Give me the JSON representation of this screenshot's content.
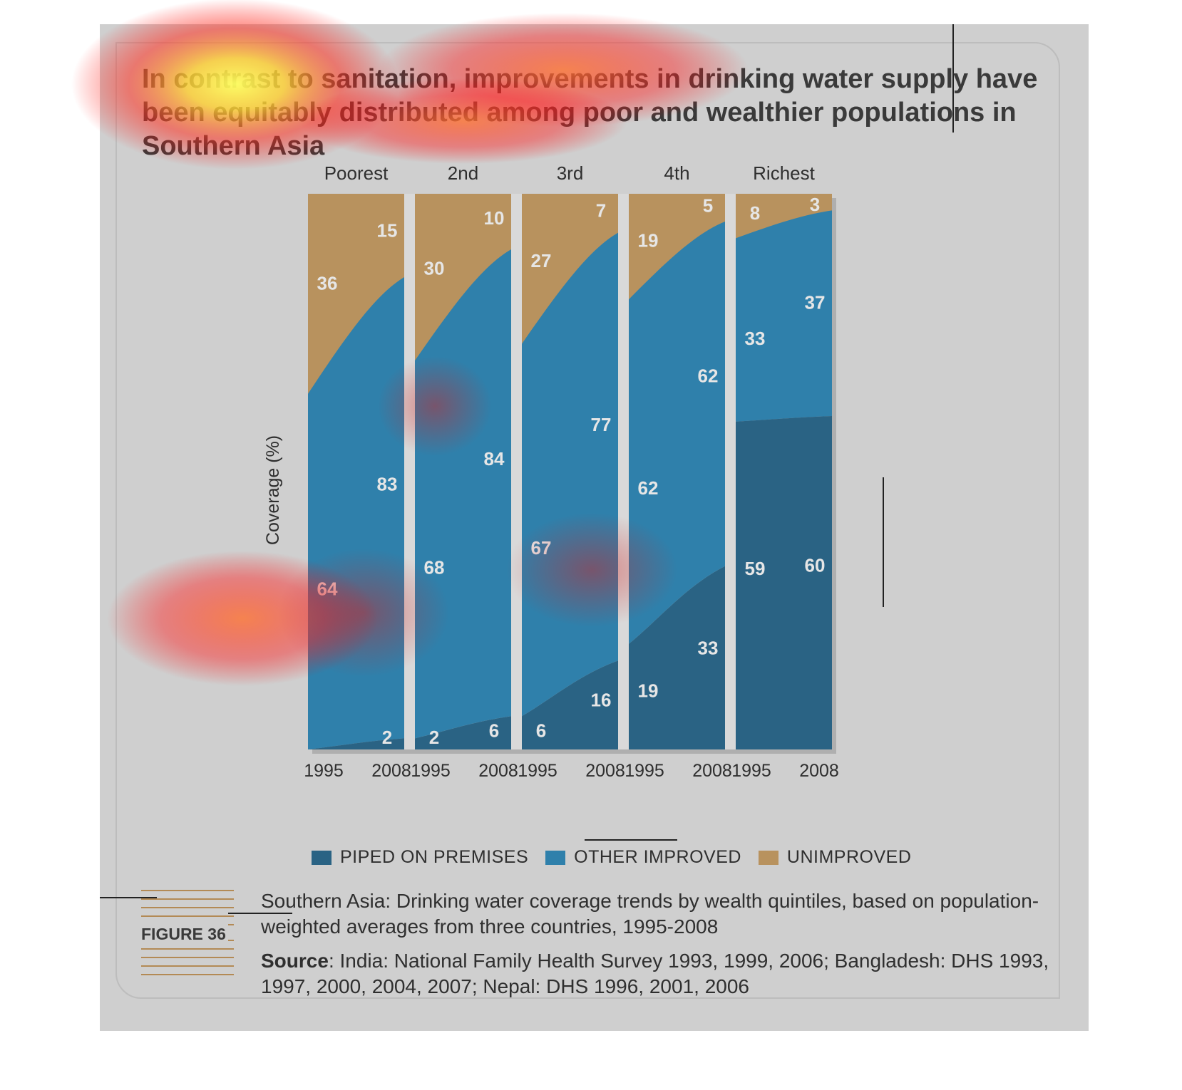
{
  "headline": "In contrast to sanitation, improvements in drinking water supply have been equitably distributed among poor and wealthier populations in Southern Asia",
  "figure_label": "FIGURE 36",
  "caption": "Southern Asia: Drinking water coverage trends by wealth quintiles, based on population-weighted averages from three countries, 1995-2008",
  "source_label": "Source",
  "source_text": ": India: National Family Health Survey 1993, 1999, 2006; Bangladesh: DHS 1993, 1997, 2000, 2004, 2007; Nepal: DHS 1996, 2001, 2006",
  "colors": {
    "piped": "#2a6384",
    "other": "#2f80ab",
    "unimproved": "#b8925e",
    "divider": "#d9d9d9"
  },
  "chart_data": {
    "type": "area",
    "ylabel": "Coverage (%)",
    "ylim": [
      0,
      100
    ],
    "stacked": true,
    "legend_placement": "bottom",
    "legend": [
      {
        "label": "PIPED ON PREMISES",
        "color": "#2a6384"
      },
      {
        "label": "OTHER IMPROVED",
        "color": "#2f80ab"
      },
      {
        "label": "UNIMPROVED",
        "color": "#b8925e"
      }
    ],
    "panels": [
      {
        "name": "Poorest",
        "x": [
          "1995",
          "2008"
        ],
        "piped": [
          0,
          2
        ],
        "other_improved": [
          64,
          83
        ],
        "unimproved": [
          36,
          15
        ],
        "piped_labels": [
          "",
          "2"
        ]
      },
      {
        "name": "2nd",
        "x": [
          "1995",
          "2008"
        ],
        "piped": [
          2,
          6
        ],
        "other_improved": [
          68,
          84
        ],
        "unimproved": [
          30,
          10
        ],
        "piped_labels": [
          "2",
          "6"
        ]
      },
      {
        "name": "3rd",
        "x": [
          "1995",
          "2008"
        ],
        "piped": [
          6,
          16
        ],
        "other_improved": [
          67,
          77
        ],
        "unimproved": [
          27,
          7
        ],
        "piped_labels": [
          "6",
          "16"
        ]
      },
      {
        "name": "4th",
        "x": [
          "1995",
          "2008"
        ],
        "piped": [
          19,
          33
        ],
        "other_improved": [
          62,
          62
        ],
        "unimproved": [
          19,
          5
        ],
        "piped_labels": [
          "19",
          "33"
        ]
      },
      {
        "name": "Richest",
        "x": [
          "1995",
          "2008"
        ],
        "piped": [
          59,
          60
        ],
        "other_improved": [
          33,
          37
        ],
        "unimproved": [
          8,
          3
        ],
        "piped_labels": [
          "59",
          "60"
        ]
      }
    ]
  }
}
